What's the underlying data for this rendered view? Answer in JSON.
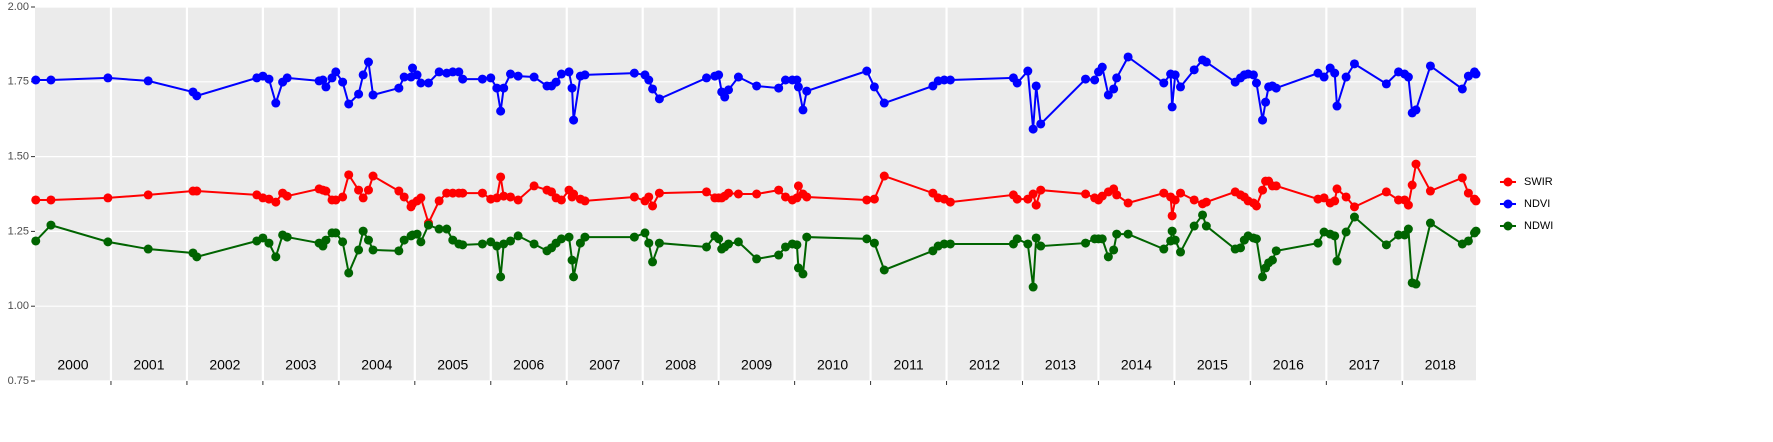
{
  "chart_data": {
    "type": "line",
    "x": [
      2000.01,
      2000.21,
      2000.96,
      2001.49,
      2002.08,
      2002.13,
      2002.92,
      2003.0,
      2003.08,
      2003.17,
      2003.26,
      2003.32,
      2003.74,
      2003.79,
      2003.83,
      2003.91,
      2003.96,
      2004.05,
      2004.13,
      2004.26,
      2004.32,
      2004.39,
      2004.45,
      2004.79,
      2004.86,
      2004.95,
      2004.97,
      2005.03,
      2005.08,
      2005.18,
      2005.32,
      2005.42,
      2005.5,
      2005.58,
      2005.63,
      2005.89,
      2006.0,
      2006.08,
      2006.13,
      2006.17,
      2006.26,
      2006.36,
      2006.57,
      2006.74,
      2006.8,
      2006.86,
      2006.93,
      2007.03,
      2007.07,
      2007.09,
      2007.18,
      2007.24,
      2007.89,
      2008.03,
      2008.08,
      2008.13,
      2008.22,
      2008.84,
      2008.95,
      2009.0,
      2009.04,
      2009.08,
      2009.13,
      2009.26,
      2009.5,
      2009.79,
      2009.88,
      2009.97,
      2010.03,
      2010.05,
      2010.11,
      2010.16,
      2010.95,
      2011.05,
      2011.18,
      2011.82,
      2011.89,
      2011.97,
      2012.05,
      2012.88,
      2012.93,
      2013.07,
      2013.14,
      2013.18,
      2013.24,
      2013.83,
      2013.95,
      2014.0,
      2014.05,
      2014.13,
      2014.2,
      2014.24,
      2014.39,
      2014.86,
      2014.95,
      2014.97,
      2015.01,
      2015.08,
      2015.26,
      2015.37,
      2015.42,
      2015.8,
      2015.87,
      2015.92,
      2015.97,
      2016.04,
      2016.08,
      2016.16,
      2016.2,
      2016.24,
      2016.29,
      2016.34,
      2016.89,
      2016.97,
      2017.05,
      2017.11,
      2017.14,
      2017.26,
      2017.37,
      2017.79,
      2017.95,
      2018.03,
      2018.08,
      2018.13,
      2018.18,
      2018.37,
      2018.79,
      2018.87,
      2018.95,
      2018.97
    ],
    "series": [
      {
        "name": "SWIR",
        "color": "#ff0000",
        "values": [
          1.355,
          1.355,
          1.362,
          1.372,
          1.385,
          1.385,
          1.372,
          1.362,
          1.358,
          1.348,
          1.378,
          1.368,
          1.392,
          1.388,
          1.385,
          1.355,
          1.355,
          1.365,
          1.439,
          1.388,
          1.362,
          1.388,
          1.435,
          1.385,
          1.365,
          1.332,
          1.342,
          1.352,
          1.362,
          1.278,
          1.352,
          1.378,
          1.378,
          1.378,
          1.378,
          1.378,
          1.358,
          1.362,
          1.432,
          1.368,
          1.365,
          1.355,
          1.402,
          1.388,
          1.382,
          1.362,
          1.355,
          1.388,
          1.365,
          1.375,
          1.358,
          1.352,
          1.365,
          1.352,
          1.365,
          1.335,
          1.378,
          1.382,
          1.362,
          1.362,
          1.362,
          1.368,
          1.378,
          1.375,
          1.375,
          1.388,
          1.365,
          1.355,
          1.362,
          1.402,
          1.375,
          1.365,
          1.355,
          1.358,
          1.435,
          1.378,
          1.362,
          1.358,
          1.348,
          1.372,
          1.358,
          1.358,
          1.375,
          1.338,
          1.388,
          1.375,
          1.362,
          1.355,
          1.368,
          1.382,
          1.392,
          1.372,
          1.345,
          1.378,
          1.365,
          1.302,
          1.355,
          1.378,
          1.355,
          1.342,
          1.348,
          1.382,
          1.372,
          1.365,
          1.352,
          1.345,
          1.335,
          1.388,
          1.418,
          1.418,
          1.402,
          1.402,
          1.358,
          1.362,
          1.345,
          1.352,
          1.392,
          1.365,
          1.332,
          1.382,
          1.355,
          1.355,
          1.338,
          1.405,
          1.475,
          1.385,
          1.429,
          1.378,
          1.358,
          1.352
        ]
      },
      {
        "name": "NDVI",
        "color": "#0000ff",
        "values": [
          1.756,
          1.756,
          1.763,
          1.753,
          1.716,
          1.703,
          1.763,
          1.769,
          1.759,
          1.679,
          1.749,
          1.763,
          1.753,
          1.756,
          1.733,
          1.763,
          1.783,
          1.749,
          1.676,
          1.709,
          1.773,
          1.816,
          1.706,
          1.729,
          1.766,
          1.766,
          1.796,
          1.773,
          1.746,
          1.746,
          1.783,
          1.779,
          1.783,
          1.783,
          1.759,
          1.759,
          1.763,
          1.729,
          1.652,
          1.729,
          1.776,
          1.769,
          1.766,
          1.736,
          1.736,
          1.749,
          1.776,
          1.783,
          1.729,
          1.622,
          1.769,
          1.773,
          1.779,
          1.773,
          1.756,
          1.726,
          1.693,
          1.763,
          1.769,
          1.773,
          1.716,
          1.699,
          1.723,
          1.766,
          1.736,
          1.729,
          1.756,
          1.756,
          1.756,
          1.733,
          1.656,
          1.719,
          1.786,
          1.733,
          1.679,
          1.736,
          1.753,
          1.756,
          1.756,
          1.763,
          1.746,
          1.786,
          1.592,
          1.736,
          1.609,
          1.759,
          1.756,
          1.783,
          1.799,
          1.706,
          1.726,
          1.763,
          1.833,
          1.746,
          1.776,
          1.666,
          1.773,
          1.733,
          1.79,
          1.823,
          1.816,
          1.749,
          1.763,
          1.773,
          1.776,
          1.773,
          1.746,
          1.622,
          1.682,
          1.733,
          1.736,
          1.729,
          1.779,
          1.766,
          1.796,
          1.779,
          1.669,
          1.766,
          1.81,
          1.743,
          1.783,
          1.776,
          1.766,
          1.646,
          1.656,
          1.803,
          1.726,
          1.769,
          1.783,
          1.776
        ]
      },
      {
        "name": "NDWI",
        "color": "#006400",
        "values": [
          1.218,
          1.271,
          1.215,
          1.191,
          1.178,
          1.165,
          1.218,
          1.228,
          1.211,
          1.165,
          1.238,
          1.231,
          1.211,
          1.201,
          1.221,
          1.245,
          1.245,
          1.215,
          1.111,
          1.188,
          1.251,
          1.221,
          1.188,
          1.185,
          1.221,
          1.235,
          1.238,
          1.241,
          1.215,
          1.271,
          1.258,
          1.258,
          1.221,
          1.208,
          1.205,
          1.208,
          1.215,
          1.201,
          1.098,
          1.208,
          1.218,
          1.235,
          1.208,
          1.185,
          1.195,
          1.211,
          1.225,
          1.231,
          1.154,
          1.098,
          1.211,
          1.231,
          1.231,
          1.245,
          1.211,
          1.148,
          1.211,
          1.198,
          1.235,
          1.225,
          1.191,
          1.198,
          1.208,
          1.215,
          1.158,
          1.171,
          1.198,
          1.208,
          1.205,
          1.128,
          1.108,
          1.231,
          1.225,
          1.211,
          1.121,
          1.185,
          1.201,
          1.208,
          1.208,
          1.208,
          1.225,
          1.208,
          1.064,
          1.228,
          1.201,
          1.211,
          1.225,
          1.225,
          1.225,
          1.165,
          1.188,
          1.241,
          1.241,
          1.191,
          1.218,
          1.251,
          1.221,
          1.181,
          1.268,
          1.305,
          1.268,
          1.191,
          1.195,
          1.221,
          1.235,
          1.228,
          1.225,
          1.098,
          1.128,
          1.145,
          1.154,
          1.185,
          1.211,
          1.248,
          1.241,
          1.235,
          1.151,
          1.248,
          1.298,
          1.205,
          1.238,
          1.238,
          1.258,
          1.078,
          1.074,
          1.278,
          1.208,
          1.218,
          1.245,
          1.251
        ]
      }
    ],
    "year_labels": [
      "2000",
      "2001",
      "2002",
      "2003",
      "2004",
      "2005",
      "2006",
      "2007",
      "2008",
      "2009",
      "2010",
      "2011",
      "2012",
      "2013",
      "2014",
      "2015",
      "2016",
      "2017",
      "2018"
    ],
    "xlim": [
      2000,
      2018.97
    ],
    "xticks": [
      2001,
      2002,
      2003,
      2004,
      2005,
      2006,
      2007,
      2008,
      2009,
      2010,
      2011,
      2012,
      2013,
      2014,
      2015,
      2016,
      2017,
      2018
    ],
    "ylim": [
      0.75,
      2.0
    ],
    "yticks": [
      0.75,
      {
        "value": 1.0,
        "label": "1.00"
      },
      1.25,
      {
        "value": 1.5,
        "label": "1.50"
      },
      1.75,
      {
        "value": 2.0,
        "label": "2.00"
      }
    ],
    "grid": true,
    "legend": "right"
  }
}
